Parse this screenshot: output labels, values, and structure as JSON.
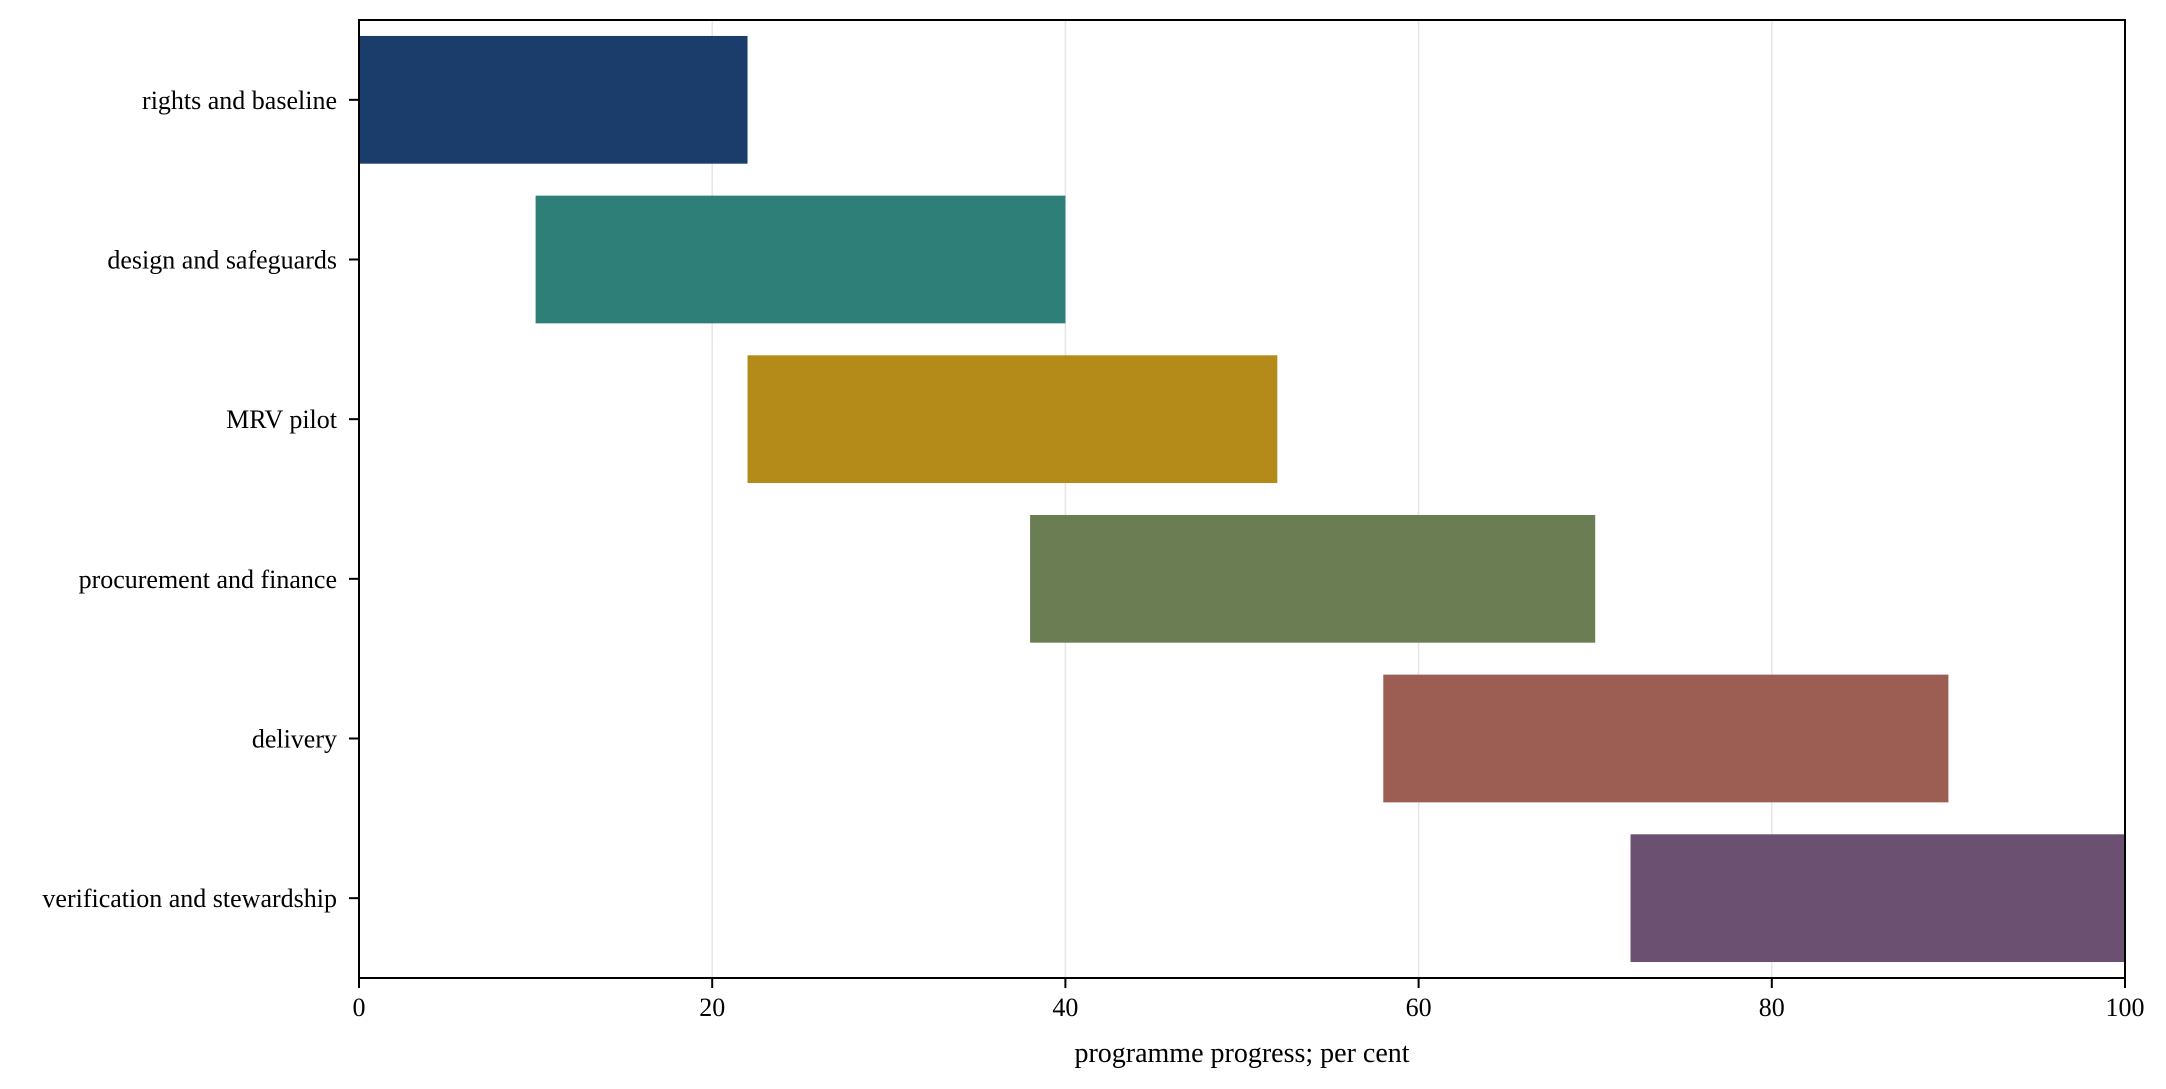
{
  "chart_data": {
    "type": "bar",
    "orientation": "horizontal",
    "xlabel": "programme progress; per cent",
    "xlim": [
      0,
      100
    ],
    "xticks": [
      "0",
      "20",
      "40",
      "60",
      "80",
      "100"
    ],
    "grid": "x",
    "series": [
      {
        "label": "rights and baseline",
        "start": 0,
        "end": 22,
        "color": "#1a3d6b"
      },
      {
        "label": "design and safeguards",
        "start": 10,
        "end": 40,
        "color": "#2e7f78"
      },
      {
        "label": "MRV pilot",
        "start": 22,
        "end": 52,
        "color": "#b48b19"
      },
      {
        "label": "procurement and finance",
        "start": 38,
        "end": 70,
        "color": "#6b7d52"
      },
      {
        "label": "delivery",
        "start": 58,
        "end": 90,
        "color": "#9c5e53"
      },
      {
        "label": "verification and stewardship",
        "start": 72,
        "end": 100,
        "color": "#6c5072"
      }
    ]
  }
}
